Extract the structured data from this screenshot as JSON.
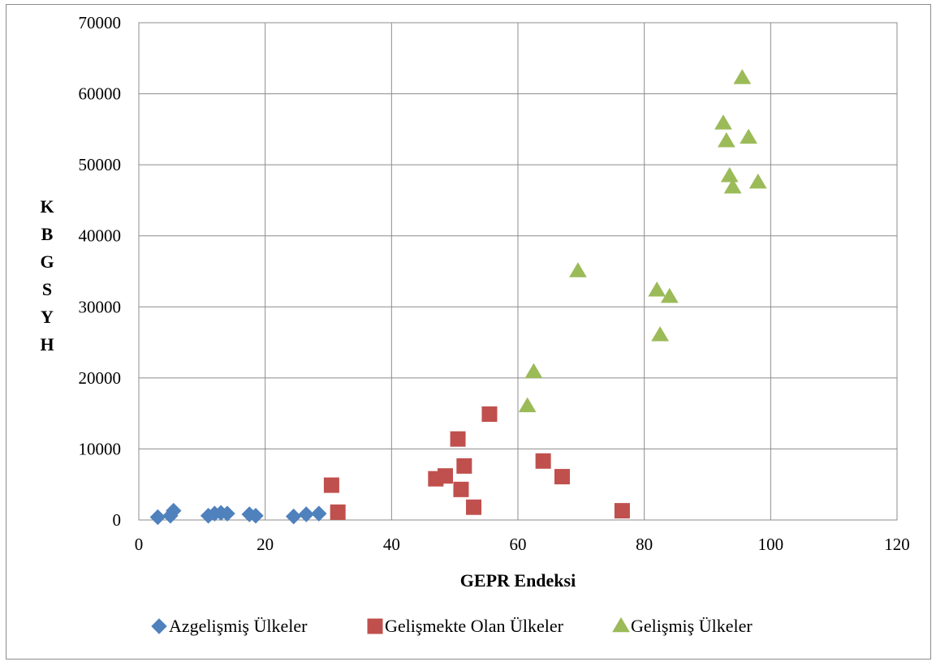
{
  "chart_data": {
    "type": "scatter",
    "xlabel": "GEPR Endeksi",
    "ylabel": "KBGSYH",
    "xlim": [
      0,
      120
    ],
    "ylim": [
      0,
      70000
    ],
    "xticks": [
      0,
      20,
      40,
      60,
      80,
      100,
      120
    ],
    "yticks": [
      0,
      10000,
      20000,
      30000,
      40000,
      50000,
      60000,
      70000
    ],
    "grid": true,
    "legend_position": "bottom",
    "series": [
      {
        "name": "Azgelişmiş Ülkeler",
        "marker": "diamond",
        "color": "#4F81BD",
        "points": [
          [
            3,
            400
          ],
          [
            5,
            600
          ],
          [
            5.5,
            1300
          ],
          [
            11,
            600
          ],
          [
            12,
            900
          ],
          [
            13,
            1000
          ],
          [
            14,
            900
          ],
          [
            17.5,
            800
          ],
          [
            18.5,
            600
          ],
          [
            24.5,
            500
          ],
          [
            26.5,
            800
          ],
          [
            28.5,
            900
          ]
        ]
      },
      {
        "name": "Gelişmekte Olan Ülkeler",
        "marker": "square",
        "color": "#C0504D",
        "points": [
          [
            30.5,
            4900
          ],
          [
            31.5,
            1100
          ],
          [
            47,
            5800
          ],
          [
            48.5,
            6200
          ],
          [
            50.5,
            11400
          ],
          [
            51,
            4300
          ],
          [
            51.5,
            7600
          ],
          [
            53,
            1800
          ],
          [
            55.5,
            14900
          ],
          [
            64,
            8300
          ],
          [
            67,
            6100
          ],
          [
            76.5,
            1300
          ]
        ]
      },
      {
        "name": "Gelişmiş Ülkeler",
        "marker": "triangle",
        "color": "#9BBB59",
        "points": [
          [
            61.5,
            16000
          ],
          [
            62.5,
            20800
          ],
          [
            69.5,
            35000
          ],
          [
            82,
            32300
          ],
          [
            82.5,
            26000
          ],
          [
            84,
            31400
          ],
          [
            92.5,
            55800
          ],
          [
            93,
            53300
          ],
          [
            93.5,
            48400
          ],
          [
            94,
            46800
          ],
          [
            95.5,
            62200
          ],
          [
            96.5,
            53800
          ],
          [
            98,
            47500
          ]
        ]
      }
    ]
  }
}
